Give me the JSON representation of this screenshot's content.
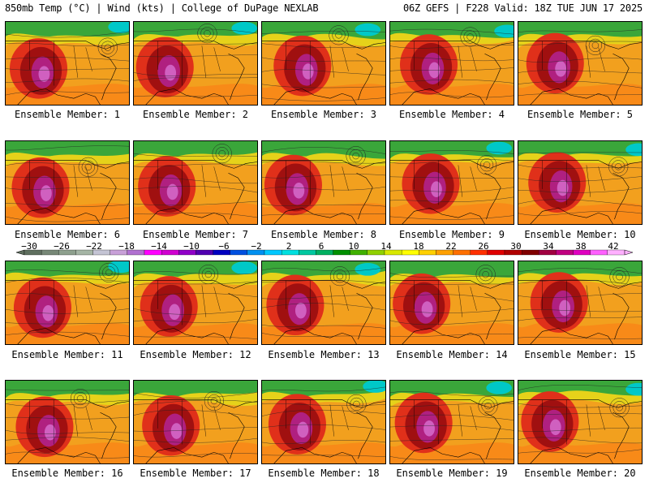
{
  "header": {
    "left": "850mb Temp (°C) | Wind (kts) | College of DuPage NEXLAB",
    "right": "06Z GEFS | F228 Valid: 18Z TUE JUN 17 2025"
  },
  "members": [
    "Ensemble Member: 1",
    "Ensemble Member: 2",
    "Ensemble Member: 3",
    "Ensemble Member: 4",
    "Ensemble Member: 5",
    "Ensemble Member: 6",
    "Ensemble Member: 7",
    "Ensemble Member: 8",
    "Ensemble Member: 9",
    "Ensemble Member: 10",
    "Ensemble Member: 11",
    "Ensemble Member: 12",
    "Ensemble Member: 13",
    "Ensemble Member: 14",
    "Ensemble Member: 15",
    "Ensemble Member: 16",
    "Ensemble Member: 17",
    "Ensemble Member: 18",
    "Ensemble Member: 19",
    "Ensemble Member: 20"
  ],
  "colorbar": {
    "labels": [
      "−30",
      "−26",
      "−22",
      "−18",
      "−14",
      "−10",
      "−6",
      "−2",
      "2",
      "6",
      "10",
      "14",
      "18",
      "22",
      "26",
      "30",
      "34",
      "38",
      "42"
    ],
    "colors": [
      "#5f6f5f",
      "#778877",
      "#8ea08e",
      "#a5b5a5",
      "#c4c4d4",
      "#c8a0d8",
      "#b070d0",
      "#ff00ff",
      "#d000d0",
      "#9000c8",
      "#5000b0",
      "#0000c0",
      "#0050e0",
      "#0090f0",
      "#00c8ff",
      "#00e0e0",
      "#00c8a0",
      "#00b060",
      "#009000",
      "#40b000",
      "#90d000",
      "#d8e800",
      "#ffff00",
      "#ffd000",
      "#ffa000",
      "#ff7000",
      "#ff3000",
      "#e00000",
      "#b00000",
      "#800000",
      "#a00040",
      "#c00080",
      "#e000c0",
      "#ff60ff",
      "#ffb0ff"
    ]
  }
}
